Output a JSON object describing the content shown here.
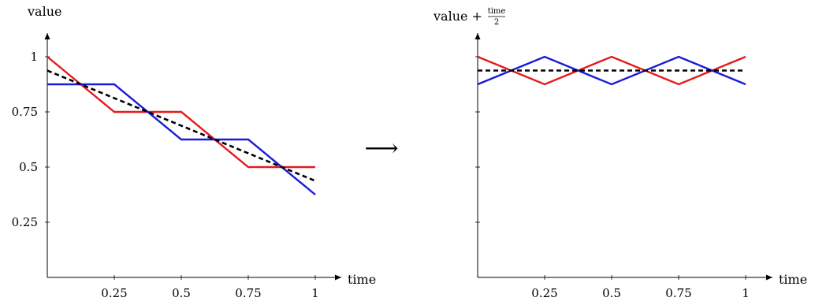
{
  "arrow_glyph": "⟶",
  "chart_data": [
    {
      "type": "line",
      "xlabel": "time",
      "ylabel": "value",
      "xlim": [
        0,
        1
      ],
      "ylim": [
        0.125,
        1.05
      ],
      "x_ticks": [
        {
          "value": 0.25,
          "label": "0.25"
        },
        {
          "value": 0.5,
          "label": "0.5"
        },
        {
          "value": 0.75,
          "label": "0.75"
        },
        {
          "value": 1,
          "label": "1"
        }
      ],
      "y_ticks": [
        {
          "value": 0.25,
          "label": "0.25"
        },
        {
          "value": 0.5,
          "label": "0.5"
        },
        {
          "value": 0.75,
          "label": "0.75"
        },
        {
          "value": 1,
          "label": "1"
        }
      ],
      "series": [
        {
          "color": "#e41a1c",
          "style": "solid",
          "points": [
            [
              0,
              1
            ],
            [
              0.25,
              0.75
            ],
            [
              0.5,
              0.75
            ],
            [
              0.75,
              0.5
            ],
            [
              1,
              0.5
            ]
          ]
        },
        {
          "color": "#1a1ad6",
          "style": "solid",
          "points": [
            [
              0,
              0.875
            ],
            [
              0.25,
              0.875
            ],
            [
              0.5,
              0.625
            ],
            [
              0.75,
              0.625
            ],
            [
              1,
              0.375
            ]
          ]
        },
        {
          "color": "#000000",
          "style": "dashed",
          "points": [
            [
              0,
              0.9375
            ],
            [
              1,
              0.4375
            ]
          ]
        }
      ]
    },
    {
      "type": "line",
      "xlabel": "time",
      "ylabel": "value +",
      "ylabel_fraction": {
        "numerator": "time",
        "denominator": "2"
      },
      "xlim": [
        0,
        1
      ],
      "ylim": [
        0.125,
        1.05
      ],
      "x_ticks": [
        {
          "value": 0.25,
          "label": "0.25"
        },
        {
          "value": 0.5,
          "label": "0.5"
        },
        {
          "value": 0.75,
          "label": "0.75"
        },
        {
          "value": 1,
          "label": "1"
        }
      ],
      "y_ticks_unlabeled": [
        0.25,
        0.5,
        0.75,
        1
      ],
      "series": [
        {
          "color": "#e41a1c",
          "style": "solid",
          "points": [
            [
              0,
              1
            ],
            [
              0.25,
              0.875
            ],
            [
              0.5,
              1
            ],
            [
              0.75,
              0.875
            ],
            [
              1,
              1
            ]
          ]
        },
        {
          "color": "#1a1ad6",
          "style": "solid",
          "points": [
            [
              0,
              0.875
            ],
            [
              0.25,
              1
            ],
            [
              0.5,
              0.875
            ],
            [
              0.75,
              1
            ],
            [
              1,
              0.875
            ]
          ]
        },
        {
          "color": "#000000",
          "style": "dashed",
          "points": [
            [
              0,
              0.9375
            ],
            [
              1,
              0.9375
            ]
          ]
        }
      ]
    }
  ]
}
